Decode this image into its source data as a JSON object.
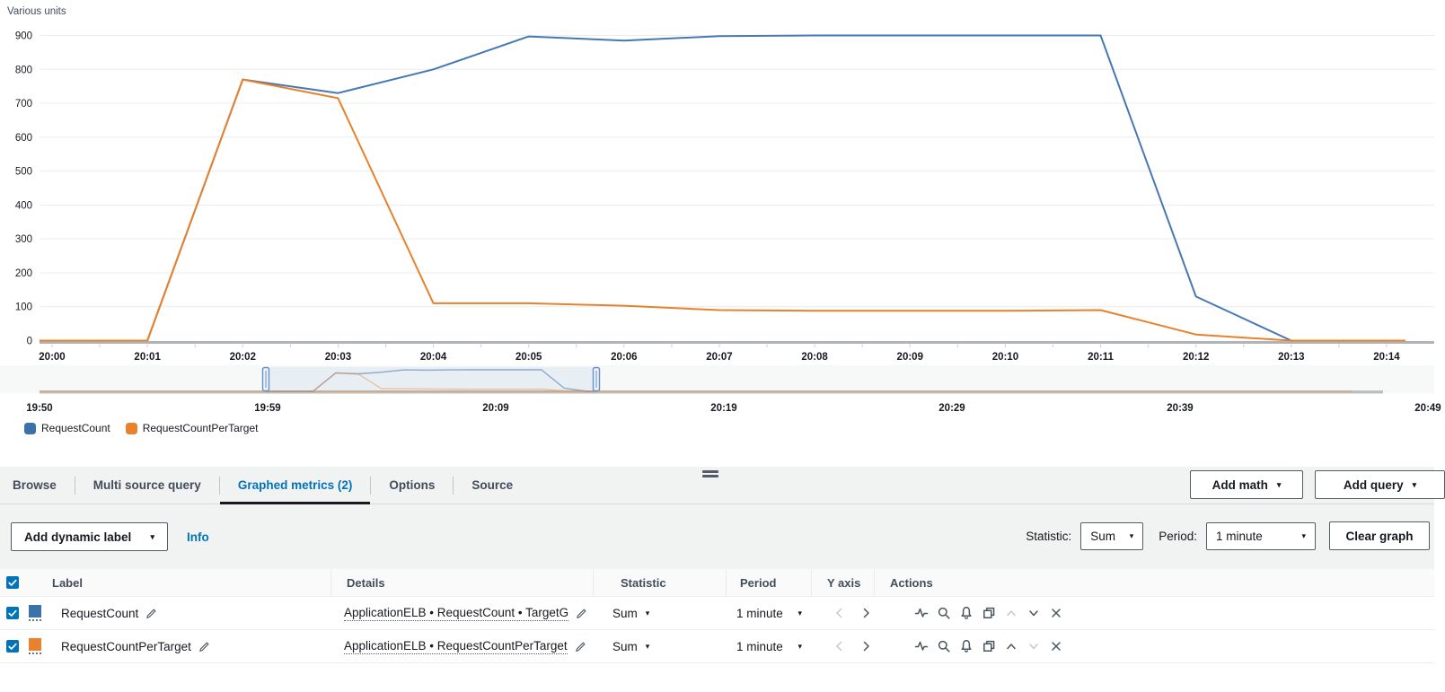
{
  "chart": {
    "unit_label": "Various units"
  },
  "chart_data": {
    "type": "line",
    "title": "",
    "xlabel": "",
    "ylabel": "Various units",
    "ylim": [
      0,
      900
    ],
    "y_ticks": [
      0,
      100,
      200,
      300,
      400,
      500,
      600,
      700,
      800,
      900
    ],
    "x": [
      "20:00",
      "20:01",
      "20:02",
      "20:03",
      "20:04",
      "20:05",
      "20:06",
      "20:07",
      "20:08",
      "20:09",
      "20:10",
      "20:11",
      "20:12",
      "20:13",
      "20:14"
    ],
    "series": [
      {
        "name": "RequestCount",
        "color": "#4678b2",
        "values": [
          0,
          0,
          770,
          730,
          800,
          897,
          885,
          898,
          900,
          900,
          900,
          900,
          130,
          0,
          0
        ]
      },
      {
        "name": "RequestCountPerTarget",
        "color": "#e8812c",
        "values": [
          0,
          0,
          770,
          715,
          110,
          110,
          103,
          90,
          88,
          88,
          88,
          90,
          18,
          0,
          0
        ]
      }
    ],
    "grid": "horizontal",
    "legend_position": "bottom-left",
    "timeline_axis": {
      "labels": [
        "19:50",
        "19:59",
        "20:09",
        "20:19",
        "20:29",
        "20:39",
        "20:49"
      ]
    }
  },
  "legend": [
    {
      "label": "RequestCount",
      "color": "#3b72a8"
    },
    {
      "label": "RequestCountPerTarget",
      "color": "#e8822d"
    }
  ],
  "tabs": [
    {
      "label": "Browse"
    },
    {
      "label": "Multi source query"
    },
    {
      "label": "Graphed metrics (2)"
    },
    {
      "label": "Options"
    },
    {
      "label": "Source"
    }
  ],
  "header_buttons": {
    "add_math": "Add math",
    "add_query": "Add query"
  },
  "toolbar": {
    "add_dynamic_label": "Add dynamic label",
    "info": "Info",
    "statistic_label": "Statistic:",
    "statistic_value": "Sum",
    "period_label": "Period:",
    "period_value": "1 minute",
    "clear_graph": "Clear graph"
  },
  "table": {
    "headers": {
      "label": "Label",
      "details": "Details",
      "statistic": "Statistic",
      "period": "Period",
      "y_axis": "Y axis",
      "actions": "Actions"
    },
    "rows": [
      {
        "checked": true,
        "color": "#3b72a8",
        "label": "RequestCount",
        "details": "ApplicationELB • RequestCount • TargetG",
        "statistic": "Sum",
        "period": "1 minute"
      },
      {
        "checked": true,
        "color": "#e8822d",
        "label": "RequestCountPerTarget",
        "details": "ApplicationELB • RequestCountPerTarget",
        "statistic": "Sum",
        "period": "1 minute"
      }
    ]
  },
  "colors": {
    "accent_blue": "#0073bb",
    "active_tab_underline": "#16191f",
    "panel_gray": "#f1f2f2",
    "line_blue": "#4678b2",
    "line_orange": "#e8812c"
  }
}
